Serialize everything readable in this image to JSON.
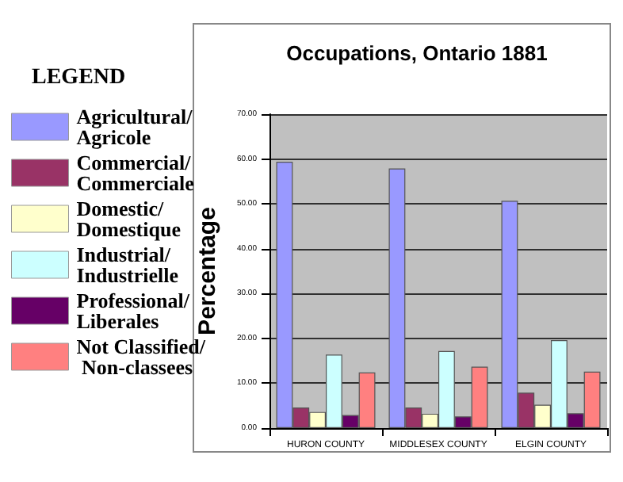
{
  "chart_data": {
    "type": "bar",
    "title": "Occupations, Ontario 1881",
    "ylabel": "Percentage",
    "legend_title": "LEGEND",
    "categories": [
      "HURON COUNTY",
      "MIDDLESEX COUNTY",
      "ELGIN COUNTY"
    ],
    "series": [
      {
        "name": "Agricultural/ Agricole",
        "color": "#9999ff",
        "values": [
          59.4,
          57.9,
          50.7
        ]
      },
      {
        "name": "Commercial/ Commerciale",
        "color": "#993366",
        "values": [
          4.6,
          4.6,
          7.9
        ]
      },
      {
        "name": "Domestic/ Domestique",
        "color": "#ffffcc",
        "values": [
          3.6,
          3.2,
          5.2
        ]
      },
      {
        "name": "Industrial/ Industrielle",
        "color": "#ccffff",
        "values": [
          16.4,
          17.2,
          19.6
        ]
      },
      {
        "name": "Professional/ Liberales",
        "color": "#660066",
        "values": [
          2.9,
          2.6,
          3.3
        ]
      },
      {
        "name": "Not Classified/ Non-classees",
        "color": "#ff8080",
        "values": [
          12.4,
          13.7,
          12.6
        ]
      }
    ],
    "ylim": [
      0,
      70
    ],
    "yticks": [
      {
        "value": 0,
        "label": "0.00"
      },
      {
        "value": 10,
        "label": "10.00"
      },
      {
        "value": 20,
        "label": "20.00"
      },
      {
        "value": 30,
        "label": "30.00"
      },
      {
        "value": 40,
        "label": "40.00"
      },
      {
        "value": 50,
        "label": "50.00"
      },
      {
        "value": 60,
        "label": "60.00"
      },
      {
        "value": 70,
        "label": "70.00"
      }
    ],
    "grid": "y",
    "legend": "left"
  }
}
